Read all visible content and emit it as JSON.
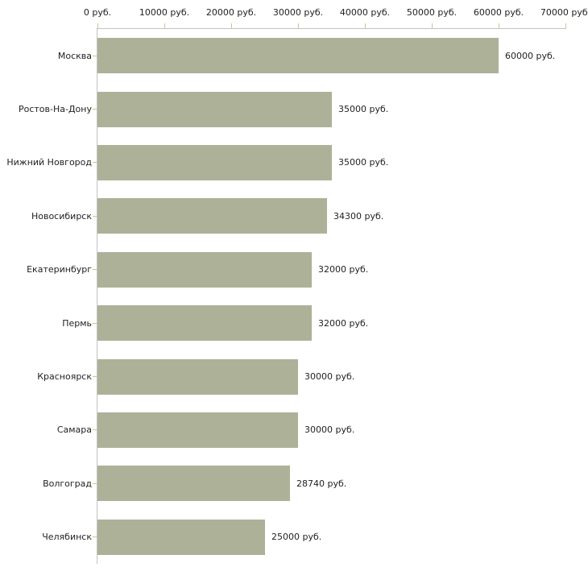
{
  "chart_data": {
    "type": "bar",
    "orientation": "horizontal",
    "title": "",
    "xlabel": "",
    "ylabel": "",
    "unit": "руб.",
    "grid": false,
    "legend": "none",
    "categories": [
      "Москва",
      "Ростов-На-Дону",
      "Нижний Новгород",
      "Новосибирск",
      "Екатеринбург",
      "Пермь",
      "Красноярск",
      "Самара",
      "Волгоград",
      "Челябинск"
    ],
    "values": [
      60000,
      35000,
      35000,
      34300,
      32000,
      32000,
      30000,
      30000,
      28740,
      25000
    ],
    "value_labels": [
      "60000 руб.",
      "35000 руб.",
      "35000 руб.",
      "34300 руб.",
      "32000 руб.",
      "32000 руб.",
      "30000 руб.",
      "30000 руб.",
      "28740 руб.",
      "25000 руб."
    ],
    "x_axis": {
      "position": "top",
      "min": 0,
      "max": 70000,
      "tick_step": 10000,
      "tick_labels": [
        "0 руб.",
        "10000 руб.",
        "20000 руб.",
        "30000 руб.",
        "40000 руб.",
        "50000 руб.",
        "60000 руб.",
        "70000 руб."
      ]
    },
    "colors": {
      "bar": "#adb198",
      "axis_line": "#c2c2c2",
      "tick": "#c6c88a",
      "text": "#1f1f1f",
      "background": "#ffffff"
    }
  }
}
